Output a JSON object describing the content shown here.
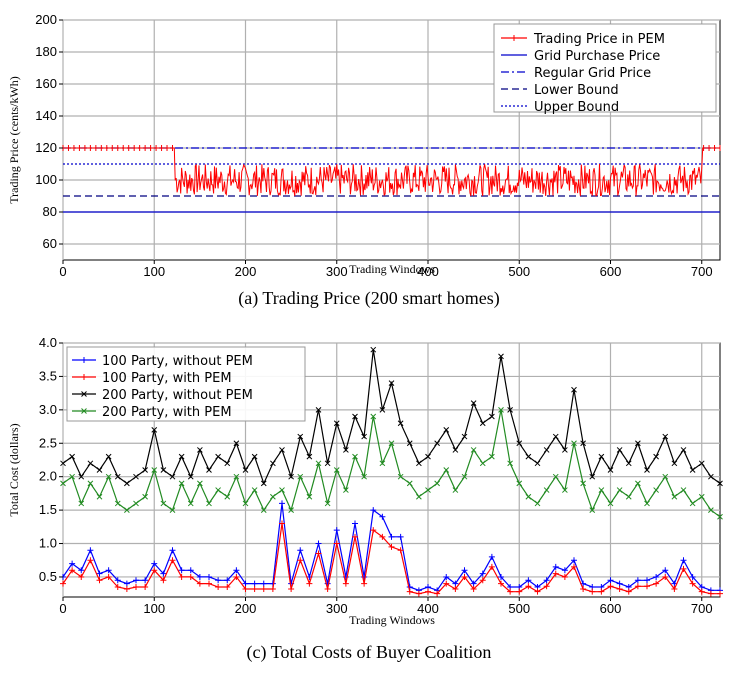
{
  "chart_data": [
    {
      "type": "line",
      "caption": "(a) Trading Price (200 smart homes)",
      "xlabel": "Trading Windows",
      "ylabel": "Trading Price (cents/kWh)",
      "xlim": [
        0,
        720
      ],
      "ylim": [
        50,
        200
      ],
      "xticks": [
        0,
        100,
        200,
        300,
        400,
        500,
        600,
        700
      ],
      "yticks": [
        60,
        80,
        100,
        120,
        140,
        160,
        180,
        200
      ],
      "grid": true,
      "legend": "top-right",
      "series": [
        {
          "name": "Trading Price in PEM",
          "color": "#ff0000",
          "style": "solid-marker",
          "description_segments": [
            {
              "x_range": [
                0,
                122
              ],
              "value": 120
            },
            {
              "x_range": [
                123,
                700
              ],
              "min": 90,
              "max": 110,
              "mean": 100
            },
            {
              "x_range": [
                701,
                720
              ],
              "value": 120
            }
          ]
        },
        {
          "name": "Grid Purchase Price",
          "color": "#0000cc",
          "style": "solid",
          "value": 80
        },
        {
          "name": "Regular Grid Price",
          "color": "#0000cc",
          "style": "dashdot",
          "value": 120
        },
        {
          "name": "Lower Bound",
          "color": "#000080",
          "style": "dashed",
          "value": 90
        },
        {
          "name": "Upper Bound",
          "color": "#0000cc",
          "style": "dotted",
          "value": 110
        }
      ]
    },
    {
      "type": "line",
      "caption": "(c) Total Costs of Buyer Coalition",
      "xlabel": "Trading Windows",
      "ylabel": "Total Cost (dollars)",
      "xlim": [
        0,
        720
      ],
      "ylim": [
        0.2,
        4.0
      ],
      "xticks": [
        0,
        100,
        200,
        300,
        400,
        500,
        600,
        700
      ],
      "yticks": [
        0.5,
        1.0,
        1.5,
        2.0,
        2.5,
        3.0,
        3.5,
        4.0
      ],
      "yticklabels": [
        "0.5",
        "1.0",
        "1.5",
        "2.0",
        "2.5",
        "3.0",
        "3.5",
        "4.0"
      ],
      "grid": true,
      "legend": "top-left",
      "x": [
        0,
        10,
        20,
        30,
        40,
        50,
        60,
        70,
        80,
        90,
        100,
        110,
        120,
        130,
        140,
        150,
        160,
        170,
        180,
        190,
        200,
        210,
        220,
        230,
        240,
        250,
        260,
        270,
        280,
        290,
        300,
        310,
        320,
        330,
        340,
        350,
        360,
        370,
        380,
        390,
        400,
        410,
        420,
        430,
        440,
        450,
        460,
        470,
        480,
        490,
        500,
        510,
        520,
        530,
        540,
        550,
        560,
        570,
        580,
        590,
        600,
        610,
        620,
        630,
        640,
        650,
        660,
        670,
        680,
        690,
        700,
        710,
        720
      ],
      "series": [
        {
          "name": "100 Party, without PEM",
          "color": "#0000ff",
          "marker": "+",
          "values": [
            0.5,
            0.7,
            0.6,
            0.9,
            0.55,
            0.6,
            0.45,
            0.4,
            0.45,
            0.45,
            0.7,
            0.55,
            0.9,
            0.6,
            0.6,
            0.5,
            0.5,
            0.45,
            0.45,
            0.6,
            0.4,
            0.4,
            0.4,
            0.4,
            1.6,
            0.4,
            0.9,
            0.5,
            1.0,
            0.4,
            1.2,
            0.5,
            1.3,
            0.5,
            1.5,
            1.4,
            1.1,
            1.1,
            0.35,
            0.3,
            0.35,
            0.3,
            0.5,
            0.4,
            0.6,
            0.4,
            0.55,
            0.8,
            0.5,
            0.35,
            0.35,
            0.45,
            0.35,
            0.45,
            0.65,
            0.6,
            0.75,
            0.4,
            0.35,
            0.35,
            0.45,
            0.4,
            0.35,
            0.45,
            0.45,
            0.5,
            0.6,
            0.4,
            0.75,
            0.5,
            0.35,
            0.3,
            0.3
          ]
        },
        {
          "name": "100 Party, with PEM",
          "color": "#ff0000",
          "marker": "+",
          "values": [
            0.4,
            0.6,
            0.5,
            0.75,
            0.45,
            0.5,
            0.35,
            0.32,
            0.35,
            0.35,
            0.6,
            0.45,
            0.75,
            0.5,
            0.5,
            0.4,
            0.4,
            0.35,
            0.35,
            0.5,
            0.32,
            0.32,
            0.32,
            0.32,
            1.3,
            0.32,
            0.75,
            0.4,
            0.85,
            0.32,
            1.0,
            0.4,
            1.1,
            0.4,
            1.2,
            1.1,
            0.95,
            0.9,
            0.28,
            0.25,
            0.28,
            0.25,
            0.4,
            0.32,
            0.5,
            0.32,
            0.45,
            0.65,
            0.4,
            0.28,
            0.28,
            0.36,
            0.28,
            0.36,
            0.55,
            0.5,
            0.65,
            0.32,
            0.28,
            0.28,
            0.36,
            0.32,
            0.28,
            0.36,
            0.36,
            0.4,
            0.5,
            0.32,
            0.62,
            0.4,
            0.28,
            0.25,
            0.25
          ]
        },
        {
          "name": "200 Party, without PEM",
          "color": "#000000",
          "marker": "x",
          "values": [
            2.2,
            2.3,
            2.0,
            2.2,
            2.1,
            2.3,
            2.0,
            1.9,
            2.0,
            2.1,
            2.7,
            2.1,
            2.0,
            2.3,
            2.0,
            2.4,
            2.1,
            2.3,
            2.2,
            2.5,
            2.1,
            2.3,
            1.9,
            2.2,
            2.4,
            2.0,
            2.6,
            2.3,
            3.0,
            2.2,
            2.8,
            2.4,
            2.9,
            2.6,
            3.9,
            3.0,
            3.4,
            2.8,
            2.5,
            2.2,
            2.3,
            2.5,
            2.7,
            2.4,
            2.6,
            3.1,
            2.8,
            2.9,
            3.8,
            3.0,
            2.5,
            2.3,
            2.2,
            2.4,
            2.6,
            2.4,
            3.3,
            2.5,
            2.0,
            2.3,
            2.1,
            2.4,
            2.2,
            2.5,
            2.1,
            2.3,
            2.6,
            2.2,
            2.4,
            2.1,
            2.2,
            2.0,
            1.9
          ]
        },
        {
          "name": "200 Party, with PEM",
          "color": "#228b22",
          "marker": "x",
          "values": [
            1.9,
            2.0,
            1.6,
            1.9,
            1.7,
            2.0,
            1.6,
            1.5,
            1.6,
            1.7,
            2.1,
            1.6,
            1.5,
            1.9,
            1.6,
            1.9,
            1.6,
            1.8,
            1.7,
            2.0,
            1.6,
            1.8,
            1.5,
            1.7,
            1.8,
            1.5,
            2.0,
            1.7,
            2.2,
            1.6,
            2.1,
            1.8,
            2.3,
            2.0,
            2.9,
            2.2,
            2.5,
            2.0,
            1.9,
            1.7,
            1.8,
            1.9,
            2.1,
            1.8,
            2.0,
            2.4,
            2.2,
            2.3,
            3.0,
            2.2,
            1.9,
            1.7,
            1.6,
            1.8,
            2.0,
            1.8,
            2.5,
            1.9,
            1.5,
            1.8,
            1.6,
            1.8,
            1.7,
            1.9,
            1.6,
            1.8,
            2.0,
            1.7,
            1.8,
            1.6,
            1.7,
            1.5,
            1.4
          ]
        }
      ]
    }
  ]
}
